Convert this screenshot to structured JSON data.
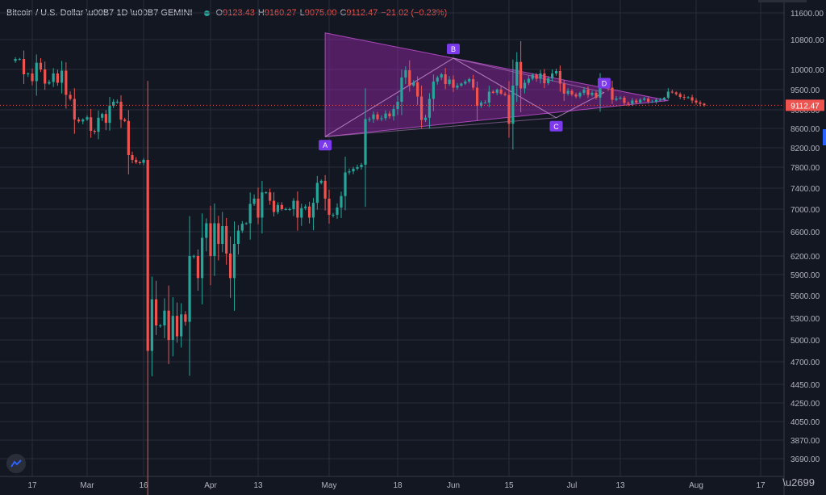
{
  "header": {
    "symbol": "Bitcoin / U.S. Dollar",
    "interval": "1D",
    "exchange": "GEMINI",
    "open_label": "O",
    "open": "9123.43",
    "high_label": "H",
    "high": "9160.27",
    "low_label": "L",
    "low": "9075.00",
    "close_label": "C",
    "close": "9112.47",
    "change": "−21.02 (−0.23%)"
  },
  "colors": {
    "background": "#131722",
    "up": "#26a69a",
    "down": "#ef5350",
    "pattern_fill": "#9c27b0",
    "pattern_label": "#7c3aed",
    "grid": "#2a2e39",
    "text": "#b2b5be"
  },
  "chart_data": {
    "type": "candlestick",
    "symbol": "Bitcoin / U.S. Dollar",
    "interval": "1D",
    "exchange": "GEMINI",
    "y_ticks": [
      3690,
      3870,
      4050,
      4250,
      4450,
      4700,
      5000,
      5300,
      5600,
      5900,
      6200,
      6600,
      7000,
      7400,
      7800,
      8200,
      8600,
      9000,
      9500,
      10000,
      10800,
      11600
    ],
    "x_tick_labels": [
      "17",
      "Mar",
      "16",
      "Apr",
      "13",
      "May",
      "18",
      "Jun",
      "15",
      "Jul",
      "13",
      "Aug",
      "17"
    ],
    "last_price": 9112.47,
    "candle_segments": [
      {
        "start": "2020-02-13",
        "closes": [
          10280,
          10280,
          9880,
          9900,
          9710,
          10180,
          10000,
          9650,
          9690,
          9900,
          9670,
          9970,
          9370,
          9270,
          8790,
          8750,
          8790,
          8840,
          8550,
          8530,
          8830,
          8910,
          8720,
          9100,
          9200,
          9200,
          8790,
          8760,
          8050,
          7950,
          7900,
          7890,
          7950,
          4850,
          5550,
          5200,
          5200,
          5400,
          5000,
          5330,
          5050,
          5350,
          5250,
          6200,
          6200,
          5850,
          6500,
          6750,
          6200,
          6750,
          6400,
          6700,
          6240,
          5850,
          6400,
          6620,
          6740,
          6750,
          7100,
          7200,
          6850,
          7320,
          7320,
          7160,
          6950,
          7080,
          7000,
          7000,
          7000,
          7160,
          6850,
          7020,
          7050,
          6850,
          7120,
          7500,
          7540,
          7200,
          6900,
          6900,
          7030,
          7250,
          7700,
          7720,
          7770,
          7800,
          7850,
          8800,
          8800,
          8900,
          8800,
          8820,
          8920,
          8860,
          9020,
          9200,
          9800,
          9980,
          9600,
          9680,
          9330,
          8780,
          8830,
          9270,
          9700,
          9800,
          9880,
          9640,
          9750,
          9550,
          9600,
          9650,
          9700,
          9760,
          9550,
          9100,
          9180,
          9180,
          9450,
          9420,
          9500,
          9400,
          9370,
          8700,
          9600,
          10200,
          9530,
          9670,
          9770,
          9870,
          9770,
          9900,
          9660,
          9780,
          9900,
          9960,
          9650,
          9400,
          9470,
          9380,
          9330,
          9420,
          9500,
          9370,
          9420,
          9300,
          9700,
          9650,
          9550,
          9250,
          9280,
          9300,
          9170,
          9150,
          9230,
          9180,
          9250,
          9280,
          9200,
          9200,
          9250,
          9250,
          9300,
          9450,
          9430,
          9390,
          9320,
          9300,
          9310,
          9230,
          9180,
          9150,
          9112.47
        ]
      }
    ],
    "pattern": {
      "type": "triangle",
      "points": [
        {
          "label": "A",
          "date": "2020-04-30",
          "price": 8430
        },
        {
          "label": "B",
          "date": "2020-06-01",
          "price": 10300
        },
        {
          "label": "C",
          "date": "2020-06-27",
          "price": 8830
        },
        {
          "label": "D",
          "date": "2020-07-09",
          "price": 9430
        }
      ],
      "upper_start": {
        "date": "2020-04-30",
        "price": 11000
      },
      "lower_start": {
        "date": "2020-04-30",
        "price": 8430
      },
      "apex": {
        "date": "2020-07-25",
        "price": 9230
      }
    },
    "grid": true
  }
}
